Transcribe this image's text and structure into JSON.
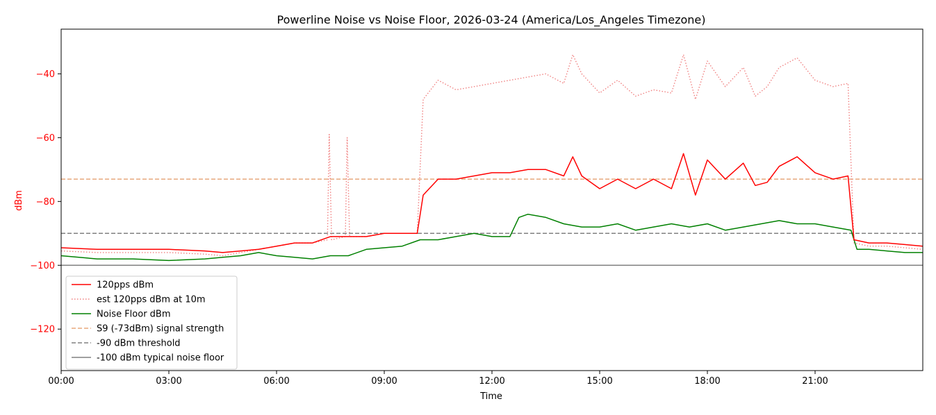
{
  "chart_data": {
    "type": "line",
    "title": "Powerline Noise vs Noise Floor, 2026-03-24 (America/Los_Angeles Timezone)",
    "xlabel": "Time",
    "ylabel": "dBm",
    "x_ticks": [
      "00:00",
      "03:00",
      "06:00",
      "09:00",
      "12:00",
      "15:00",
      "18:00",
      "21:00"
    ],
    "y_ticks": [
      -40,
      -60,
      -80,
      -100,
      -120
    ],
    "xlim": [
      "00:00",
      "24:00"
    ],
    "ylim": [
      -133,
      -26
    ],
    "grid": false,
    "legend_position": "lower-left",
    "series": [
      {
        "name": "120pps dBm",
        "color": "#ff0000",
        "style": "solid",
        "x": [
          "00:00",
          "01:00",
          "02:00",
          "03:00",
          "04:00",
          "04:30",
          "05:00",
          "05:30",
          "06:00",
          "06:30",
          "07:00",
          "07:30",
          "08:00",
          "08:30",
          "09:00",
          "09:30",
          "09:55",
          "10:05",
          "10:30",
          "11:00",
          "11:30",
          "12:00",
          "12:30",
          "13:00",
          "13:30",
          "14:00",
          "14:15",
          "14:30",
          "15:00",
          "15:30",
          "16:00",
          "16:30",
          "17:00",
          "17:20",
          "17:40",
          "18:00",
          "18:30",
          "19:00",
          "19:20",
          "19:40",
          "20:00",
          "20:30",
          "21:00",
          "21:30",
          "21:55",
          "22:05",
          "22:30",
          "23:00",
          "23:30",
          "24:00"
        ],
        "y": [
          -94.5,
          -95,
          -95,
          -95,
          -95.5,
          -96,
          -95.5,
          -95,
          -94,
          -93,
          -93,
          -91,
          -91,
          -91,
          -90,
          -90,
          -90,
          -78,
          -73,
          -73,
          -72,
          -71,
          -71,
          -70,
          -70,
          -72,
          -66,
          -72,
          -76,
          -73,
          -76,
          -73,
          -76,
          -65,
          -78,
          -67,
          -73,
          -68,
          -75,
          -74,
          -69,
          -66,
          -71,
          -73,
          -72,
          -92,
          -93,
          -93,
          -93.5,
          -94
        ]
      },
      {
        "name": "est 120pps dBm at 10m",
        "color": "#f08080",
        "style": "dotted",
        "x": [
          "00:00",
          "01:00",
          "02:00",
          "03:00",
          "04:00",
          "04:30",
          "05:00",
          "05:30",
          "06:00",
          "06:30",
          "07:00",
          "07:25",
          "07:28",
          "07:32",
          "07:55",
          "07:58",
          "08:02",
          "08:30",
          "09:00",
          "09:30",
          "09:55",
          "10:05",
          "10:30",
          "11:00",
          "11:30",
          "12:00",
          "12:30",
          "13:00",
          "13:30",
          "14:00",
          "14:15",
          "14:30",
          "15:00",
          "15:30",
          "16:00",
          "16:30",
          "17:00",
          "17:20",
          "17:40",
          "18:00",
          "18:30",
          "19:00",
          "19:20",
          "19:40",
          "20:00",
          "20:30",
          "21:00",
          "21:30",
          "21:55",
          "22:05",
          "22:30",
          "23:00",
          "23:30",
          "24:00"
        ],
        "y": [
          -95.5,
          -96,
          -96,
          -96,
          -96.5,
          -97,
          -96,
          -95,
          -94,
          -93,
          -93,
          -92,
          -59,
          -92,
          -91,
          -60,
          -91,
          -91,
          -90,
          -90,
          -90,
          -48,
          -42,
          -45,
          -44,
          -43,
          -42,
          -41,
          -40,
          -43,
          -34,
          -40,
          -46,
          -42,
          -47,
          -45,
          -46,
          -34,
          -48,
          -36,
          -44,
          -38,
          -47,
          -44,
          -38,
          -35,
          -42,
          -44,
          -43,
          -93,
          -94,
          -94,
          -94.5,
          -95
        ]
      },
      {
        "name": "Noise Floor dBm",
        "color": "#008000",
        "style": "solid",
        "x": [
          "00:00",
          "01:00",
          "02:00",
          "03:00",
          "04:00",
          "04:30",
          "05:00",
          "05:30",
          "06:00",
          "06:30",
          "07:00",
          "07:30",
          "08:00",
          "08:30",
          "09:00",
          "09:30",
          "10:00",
          "10:30",
          "11:00",
          "11:30",
          "12:00",
          "12:30",
          "12:45",
          "13:00",
          "13:30",
          "14:00",
          "14:30",
          "15:00",
          "15:30",
          "16:00",
          "16:30",
          "17:00",
          "17:30",
          "18:00",
          "18:30",
          "19:00",
          "19:30",
          "20:00",
          "20:30",
          "21:00",
          "21:30",
          "22:00",
          "22:10",
          "22:30",
          "23:00",
          "23:30",
          "24:00"
        ],
        "y": [
          -97,
          -98,
          -98,
          -98.5,
          -98,
          -97.5,
          -97,
          -96,
          -97,
          -97.5,
          -98,
          -97,
          -97,
          -95,
          -94.5,
          -94,
          -92,
          -92,
          -91,
          -90,
          -91,
          -91,
          -85,
          -84,
          -85,
          -87,
          -88,
          -88,
          -87,
          -89,
          -88,
          -87,
          -88,
          -87,
          -89,
          -88,
          -87,
          -86,
          -87,
          -87,
          -88,
          -89,
          -95,
          -95,
          -95.5,
          -96,
          -96
        ]
      },
      {
        "name": "S9 (-73dBm) signal strength",
        "color": "#e8a87c",
        "style": "dashed",
        "x": [
          "00:00",
          "24:00"
        ],
        "y": [
          -73,
          -73
        ]
      },
      {
        "name": "-90 dBm threshold",
        "color": "#808080",
        "style": "dashed",
        "x": [
          "00:00",
          "24:00"
        ],
        "y": [
          -90,
          -90
        ]
      },
      {
        "name": "-100 dBm typical noise floor",
        "color": "#808080",
        "style": "solid",
        "x": [
          "00:00",
          "24:00"
        ],
        "y": [
          -100,
          -100
        ]
      }
    ]
  }
}
